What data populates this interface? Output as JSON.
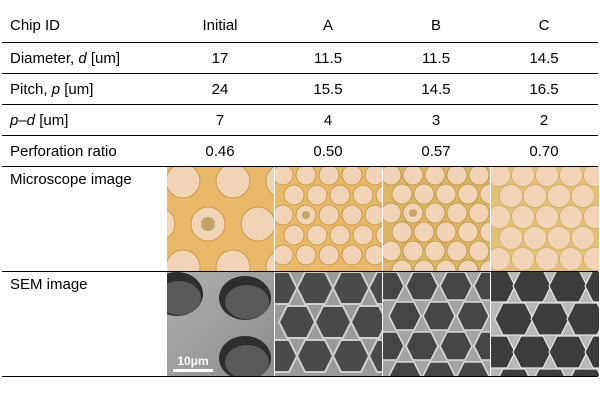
{
  "table": {
    "header": {
      "label": "Chip ID",
      "columns": [
        "Initial",
        "A",
        "B",
        "C"
      ]
    },
    "rows": [
      {
        "label_plain": "Diameter, ",
        "label_italic": "d",
        "label_suffix": " [um]",
        "values": [
          "17",
          "11.5",
          "11.5",
          "14.5"
        ]
      },
      {
        "label_plain": "Pitch, ",
        "label_italic": "p",
        "label_suffix": " [um]",
        "values": [
          "24",
          "15.5",
          "14.5",
          "16.5"
        ]
      },
      {
        "label_plain": "",
        "label_italic": "p–d",
        "label_suffix": " [um]",
        "values": [
          "7",
          "4",
          "3",
          "2"
        ]
      },
      {
        "label_plain": "Perforation ratio",
        "label_italic": "",
        "label_suffix": "",
        "values": [
          "0.46",
          "0.50",
          "0.57",
          "0.70"
        ]
      }
    ],
    "microscope_label": "Microscope image",
    "sem_label": "SEM image",
    "scale_bar_text": "10μm"
  },
  "colors": {
    "microscope_background": "#e8b968",
    "microscope_hole": "#f2d3b5",
    "sem_background": "#8a8a8a"
  }
}
